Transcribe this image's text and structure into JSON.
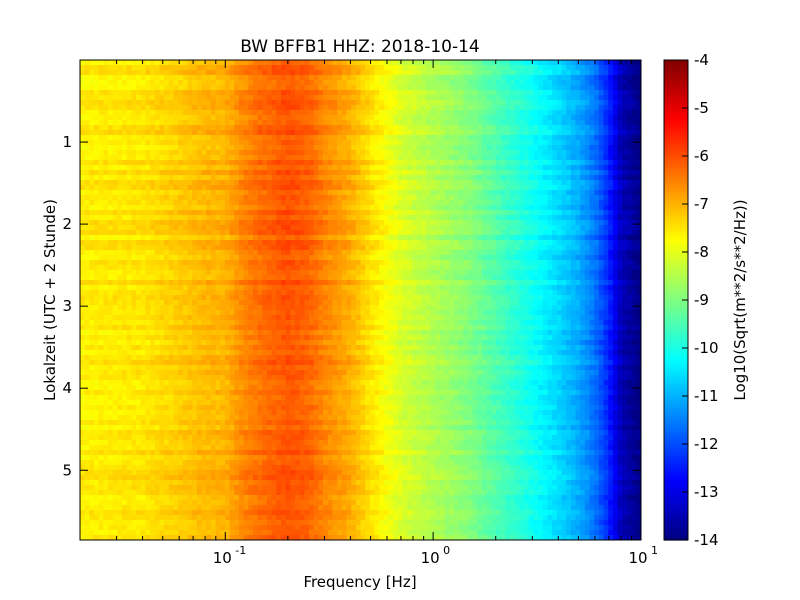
{
  "chart_data": {
    "type": "heatmap",
    "title": "BW BFFB1 HHZ: 2018-10-14",
    "xlabel": "Frequency [Hz]",
    "ylabel": "Lokalzeit (UTC + 2 Stunde)",
    "x_scale": "log",
    "xlim": [
      0.02,
      10
    ],
    "ylim": [
      5.85,
      0
    ],
    "x_ticks": [
      {
        "value": 0.1,
        "base": "10",
        "exp": "-1"
      },
      {
        "value": 1,
        "base": "10",
        "exp": "0"
      },
      {
        "value": 10,
        "base": "10",
        "exp": "1"
      }
    ],
    "y_ticks": [
      "1",
      "2",
      "3",
      "4",
      "5"
    ],
    "colorbar": {
      "label": "Log10(Sqrt(m**2/s**2/Hz))",
      "range": [
        -14,
        -4
      ],
      "ticks": [
        "-4",
        "-5",
        "-6",
        "-7",
        "-8",
        "-9",
        "-10",
        "-11",
        "-12",
        "-13",
        "-14"
      ],
      "colormap": "jet"
    },
    "spectrum_profile": {
      "frequency_hz": [
        0.02,
        0.04,
        0.06,
        0.08,
        0.1,
        0.12,
        0.15,
        0.2,
        0.25,
        0.3,
        0.4,
        0.5,
        0.7,
        1.0,
        1.5,
        2.0,
        3.0,
        4.0,
        5.0,
        6.0,
        7.0,
        8.0,
        10.0
      ],
      "log10_amplitude": [
        -7.6,
        -7.5,
        -7.25,
        -7.05,
        -7.0,
        -6.6,
        -6.3,
        -6.05,
        -6.2,
        -6.55,
        -6.95,
        -7.45,
        -8.1,
        -8.5,
        -8.95,
        -9.45,
        -10.1,
        -10.6,
        -11.05,
        -11.6,
        -12.4,
        -13.4,
        -14.0
      ]
    }
  }
}
